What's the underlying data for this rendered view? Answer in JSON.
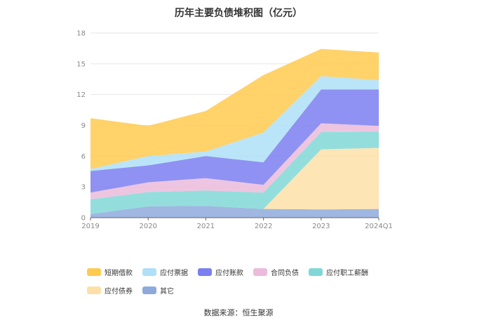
{
  "chart_data": {
    "type": "area",
    "stacked": true,
    "title": "历年主要负债堆积图（亿元）",
    "categories": [
      "2019",
      "2020",
      "2021",
      "2022",
      "2023",
      "2024Q1"
    ],
    "ylim": [
      0,
      18
    ],
    "yticks": [
      "0",
      "3",
      "6",
      "9",
      "12",
      "15",
      "18"
    ],
    "grid": true,
    "legend_position": "bottom",
    "series": [
      {
        "name": "其它",
        "color": "#8eaadc",
        "values": [
          0.35,
          1.1,
          1.15,
          0.85,
          0.8,
          0.85
        ]
      },
      {
        "name": "应付债券",
        "color": "#fde0a8",
        "values": [
          0,
          0,
          0,
          0,
          5.85,
          5.95
        ]
      },
      {
        "name": "应付职工薪酬",
        "color": "#80d8d6",
        "values": [
          1.45,
          1.4,
          1.5,
          1.6,
          1.7,
          1.6
        ]
      },
      {
        "name": "合同负债",
        "color": "#ebbbdc",
        "values": [
          0.65,
          0.95,
          1.2,
          0.75,
          0.85,
          0.55
        ]
      },
      {
        "name": "应付账款",
        "color": "#7b7ff0",
        "values": [
          2.1,
          1.65,
          2.15,
          2.2,
          3.3,
          3.55
        ]
      },
      {
        "name": "应付票据",
        "color": "#aee0f7",
        "values": [
          0.2,
          0.9,
          0.45,
          2.9,
          1.3,
          0.9
        ]
      },
      {
        "name": "短期借款",
        "color": "#ffca50",
        "values": [
          4.95,
          2.95,
          3.95,
          5.6,
          2.65,
          2.7
        ]
      }
    ]
  },
  "legend_order": [
    "短期借款",
    "应付票据",
    "应付账款",
    "合同负债",
    "应付职工薪酬",
    "应付债券",
    "其它"
  ],
  "source": "数据来源：恒生聚源"
}
